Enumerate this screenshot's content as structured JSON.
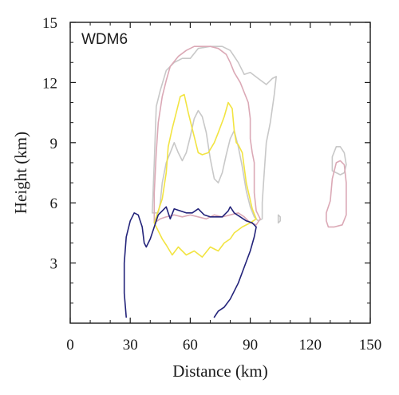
{
  "chart_data": {
    "type": "line",
    "title": "",
    "panel_label": "WDM6",
    "xlabel": "Distance (km)",
    "ylabel": "Height (km)",
    "xlim": [
      0,
      150
    ],
    "ylim": [
      0,
      15
    ],
    "xticks": [
      0,
      30,
      60,
      90,
      120,
      150
    ],
    "yticks": [
      3,
      6,
      9,
      12,
      15
    ],
    "xtick_labels": [
      "0",
      "30",
      "60",
      "90",
      "120",
      "150"
    ],
    "ytick_labels": [
      "3",
      "6",
      "9",
      "12",
      "15"
    ],
    "grid": false,
    "legend": "none",
    "series": [
      {
        "color": "#c8c8c8",
        "points": [
          [
            41,
            5.5
          ],
          [
            42,
            8.0
          ],
          [
            43,
            10.8
          ],
          [
            45,
            11.6
          ],
          [
            48,
            12.6
          ],
          [
            52,
            13.0
          ],
          [
            56,
            13.2
          ],
          [
            60,
            13.2
          ],
          [
            64,
            13.7
          ],
          [
            70,
            13.8
          ],
          [
            76,
            13.8
          ],
          [
            80,
            13.6
          ],
          [
            84,
            13.0
          ],
          [
            87,
            12.4
          ],
          [
            90,
            12.5
          ],
          [
            94,
            12.2
          ],
          [
            98,
            11.9
          ],
          [
            101,
            12.2
          ],
          [
            103,
            12.3
          ],
          [
            102,
            11.4
          ],
          [
            100,
            10.0
          ],
          [
            98,
            9.0
          ],
          [
            97,
            7.5
          ],
          [
            96,
            6.0
          ],
          [
            96,
            5.2
          ],
          [
            94,
            5.1
          ],
          [
            92,
            5.3
          ],
          [
            90,
            5.8
          ],
          [
            88,
            6.6
          ],
          [
            86,
            7.8
          ],
          [
            84,
            8.8
          ],
          [
            82,
            9.6
          ],
          [
            80,
            9.2
          ],
          [
            78,
            8.4
          ],
          [
            76,
            7.5
          ],
          [
            74,
            7.0
          ],
          [
            72,
            7.2
          ],
          [
            70,
            8.2
          ],
          [
            68,
            9.5
          ],
          [
            66,
            10.3
          ],
          [
            64,
            10.6
          ],
          [
            62,
            10.2
          ],
          [
            60,
            9.3
          ],
          [
            58,
            8.5
          ],
          [
            56,
            8.1
          ],
          [
            54,
            8.5
          ],
          [
            52,
            9.0
          ],
          [
            50,
            8.5
          ],
          [
            48,
            8.0
          ],
          [
            46,
            7.0
          ],
          [
            45,
            6.0
          ],
          [
            44,
            5.5
          ],
          [
            41,
            5.5
          ]
        ]
      },
      {
        "color": "#c8c8c8",
        "points": [
          [
            104,
            5.4
          ],
          [
            105,
            5.3
          ],
          [
            105,
            5.1
          ],
          [
            104,
            5.0
          ],
          [
            104,
            5.4
          ]
        ]
      },
      {
        "color": "#c8c8c8",
        "points": [
          [
            131,
            7.6
          ],
          [
            131,
            8.3
          ],
          [
            133,
            8.8
          ],
          [
            135,
            8.8
          ],
          [
            137,
            8.5
          ],
          [
            138,
            7.9
          ],
          [
            137,
            7.5
          ],
          [
            135,
            7.4
          ],
          [
            133,
            7.5
          ],
          [
            131,
            7.6
          ]
        ]
      },
      {
        "color": "#dba9b6",
        "points": [
          [
            42,
            5.0
          ],
          [
            42,
            6.5
          ],
          [
            43,
            8.5
          ],
          [
            44,
            10.0
          ],
          [
            46,
            11.3
          ],
          [
            48,
            12.1
          ],
          [
            50,
            12.8
          ],
          [
            54,
            13.3
          ],
          [
            58,
            13.6
          ],
          [
            62,
            13.8
          ],
          [
            66,
            13.8
          ],
          [
            70,
            13.8
          ],
          [
            74,
            13.7
          ],
          [
            78,
            13.4
          ],
          [
            80,
            13.0
          ],
          [
            82,
            12.5
          ],
          [
            85,
            12.0
          ],
          [
            87,
            11.5
          ],
          [
            89,
            11.0
          ],
          [
            90,
            10.2
          ],
          [
            90,
            9.2
          ],
          [
            91,
            8.5
          ],
          [
            92,
            8.0
          ],
          [
            92,
            6.5
          ],
          [
            93,
            5.6
          ],
          [
            95,
            5.2
          ],
          [
            93,
            4.9
          ],
          [
            90,
            5.0
          ],
          [
            87,
            5.3
          ],
          [
            84,
            5.5
          ],
          [
            80,
            5.4
          ],
          [
            76,
            5.3
          ],
          [
            72,
            5.4
          ],
          [
            68,
            5.2
          ],
          [
            64,
            5.3
          ],
          [
            60,
            5.4
          ],
          [
            56,
            5.3
          ],
          [
            52,
            5.4
          ],
          [
            48,
            5.3
          ],
          [
            45,
            5.2
          ],
          [
            42,
            5.0
          ]
        ]
      },
      {
        "color": "#dba9b6",
        "points": [
          [
            128,
            5.1
          ],
          [
            129,
            4.8
          ],
          [
            132,
            4.8
          ],
          [
            136,
            4.9
          ],
          [
            138,
            5.4
          ],
          [
            138,
            7.0
          ],
          [
            137,
            7.9
          ],
          [
            135,
            8.1
          ],
          [
            133,
            8.0
          ],
          [
            131,
            7.2
          ],
          [
            130,
            6.1
          ],
          [
            128,
            5.5
          ],
          [
            128,
            5.1
          ]
        ]
      },
      {
        "color": "#f2e442",
        "points": [
          [
            43,
            5.3
          ],
          [
            46,
            6.2
          ],
          [
            48,
            7.5
          ],
          [
            49,
            8.8
          ],
          [
            51,
            9.7
          ],
          [
            53,
            10.5
          ],
          [
            55,
            11.3
          ],
          [
            57,
            11.4
          ],
          [
            59,
            10.5
          ],
          [
            62,
            9.3
          ],
          [
            64,
            8.5
          ],
          [
            66,
            8.4
          ],
          [
            69,
            8.5
          ],
          [
            72,
            9.0
          ],
          [
            74,
            9.5
          ],
          [
            77,
            10.3
          ],
          [
            79,
            11.0
          ],
          [
            81,
            10.7
          ],
          [
            82,
            9.6
          ],
          [
            83,
            9.0
          ],
          [
            84,
            8.9
          ],
          [
            86,
            8.5
          ],
          [
            88,
            7.0
          ],
          [
            91,
            5.7
          ],
          [
            93,
            5.2
          ],
          [
            90,
            5.0
          ],
          [
            86,
            4.8
          ],
          [
            82,
            4.5
          ],
          [
            80,
            4.2
          ],
          [
            77,
            4.0
          ],
          [
            74,
            3.6
          ],
          [
            70,
            3.8
          ],
          [
            66,
            3.3
          ],
          [
            62,
            3.6
          ],
          [
            58,
            3.4
          ],
          [
            54,
            3.8
          ],
          [
            51,
            3.4
          ],
          [
            48,
            3.9
          ],
          [
            46,
            4.2
          ],
          [
            44,
            4.6
          ],
          [
            42,
            5.0
          ],
          [
            43,
            5.3
          ]
        ]
      },
      {
        "color": "#23237a",
        "points": [
          [
            28,
            0.3
          ],
          [
            27,
            1.5
          ],
          [
            27,
            3.0
          ],
          [
            28,
            4.3
          ],
          [
            30,
            5.1
          ],
          [
            32,
            5.5
          ],
          [
            34,
            5.4
          ],
          [
            36,
            4.8
          ],
          [
            37,
            4.0
          ],
          [
            38,
            3.8
          ],
          [
            40,
            4.2
          ],
          [
            42,
            4.8
          ],
          [
            44,
            5.4
          ],
          [
            46,
            5.6
          ],
          [
            48,
            5.8
          ],
          [
            50,
            5.2
          ],
          [
            52,
            5.7
          ],
          [
            55,
            5.6
          ],
          [
            58,
            5.5
          ],
          [
            61,
            5.5
          ],
          [
            64,
            5.7
          ],
          [
            67,
            5.4
          ],
          [
            70,
            5.3
          ],
          [
            73,
            5.3
          ],
          [
            76,
            5.3
          ],
          [
            79,
            5.6
          ],
          [
            80,
            5.8
          ],
          [
            82,
            5.5
          ],
          [
            85,
            5.3
          ],
          [
            88,
            5.1
          ],
          [
            91,
            5.0
          ],
          [
            93,
            4.8
          ],
          [
            92,
            4.3
          ],
          [
            90,
            3.6
          ],
          [
            87,
            2.8
          ],
          [
            84,
            2.0
          ],
          [
            80,
            1.2
          ],
          [
            77,
            0.8
          ],
          [
            74,
            0.6
          ],
          [
            72,
            0.3
          ]
        ]
      }
    ]
  }
}
